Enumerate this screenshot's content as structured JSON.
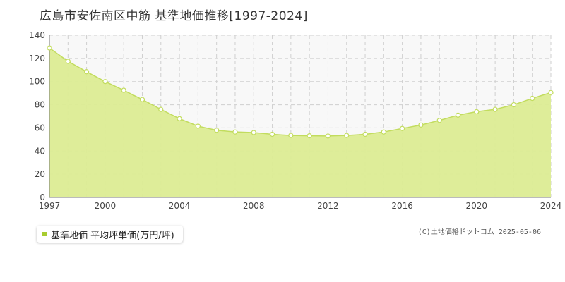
{
  "header": {
    "title": "広島市安佐南区中筋 基準地価推移[1997-2024]"
  },
  "legend": {
    "label": "基準地価 平均坪単価(万円/坪)"
  },
  "credit": {
    "text": "(C)土地価格ドットコム 2025-05-06"
  },
  "colors": {
    "fill": "#dcec94",
    "line": "#c2dc5e",
    "marker_fill": "#ffffff",
    "legend_swatch": "#a8cc30"
  },
  "chart_data": {
    "type": "area",
    "xlim": [
      1997,
      2024
    ],
    "ylim": [
      0,
      140
    ],
    "x_ticks": [
      1997,
      2000,
      2004,
      2008,
      2012,
      2016,
      2020,
      2024
    ],
    "y_ticks": [
      0,
      20,
      40,
      60,
      80,
      100,
      120,
      140
    ],
    "grid": true,
    "legend_position": "bottom-left",
    "series": [
      {
        "name": "基準地価 平均坪単価(万円/坪)",
        "x": [
          1997,
          1998,
          1999,
          2000,
          2001,
          2002,
          2003,
          2004,
          2005,
          2006,
          2007,
          2008,
          2009,
          2010,
          2011,
          2012,
          2013,
          2014,
          2015,
          2016,
          2017,
          2018,
          2019,
          2020,
          2021,
          2022,
          2023,
          2024
        ],
        "y": [
          129,
          117.5,
          108.5,
          100,
          92.5,
          84.5,
          76,
          68,
          61.5,
          58,
          56.5,
          56,
          54.5,
          53.5,
          53.2,
          53,
          53.5,
          54.5,
          56.5,
          59.5,
          62.5,
          66.5,
          71,
          74,
          76,
          80,
          85.5,
          90.5
        ]
      }
    ]
  }
}
